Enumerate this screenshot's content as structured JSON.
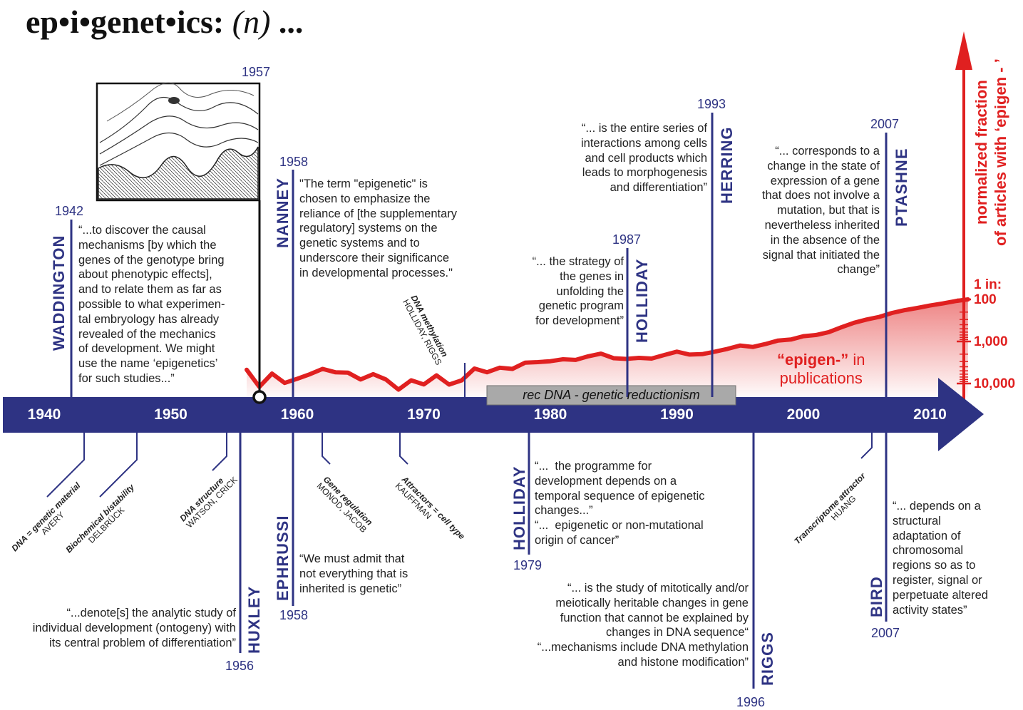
{
  "title": {
    "word": "ep•i•genet•ics:",
    "pos": "(n)",
    "ellipsis": "..."
  },
  "colors": {
    "navy": "#2e3383",
    "red": "#e02020",
    "gray_box": "#a9a9a9"
  },
  "timeline": {
    "decades": [
      "1940",
      "1950",
      "1960",
      "1970",
      "1980",
      "1990",
      "2000",
      "2010"
    ],
    "rec_dna_label": "rec DNA - genetic reductionism"
  },
  "above": {
    "waddington": {
      "year": "1942",
      "name": "WADDINGTON",
      "quote": "“...to discover the causal\nmechanisms [by which the\ngenes of the genotype bring\nabout phenotypic effects],\nand to relate them as far as\npossible to what experimen-\ntal embryology has already\nrevealed of the mechanics\nof development. We might\nuse the name ‘epigenetics’\nfor such studies...”"
    },
    "landscape": {
      "year": "1957",
      "icon": "epigenetic-landscape-icon"
    },
    "nanney": {
      "year": "1958",
      "name": "NANNEY",
      "quote": "\"The term \"epigenetic\" is\nchosen to emphasize the\nreliance of [the supplementary\nregulatory] systems on the\ngenetic systems and to\nunderscore their significance\nin developmental processes.\""
    },
    "dna_methylation": {
      "title": "DNA methylation",
      "authors": "HOLLIDAY, RIGGS"
    },
    "holliday87": {
      "year": "1987",
      "name": "HOLLIDAY",
      "quote": "“... the strategy of\nthe genes in\nunfolding the\ngenetic program\nfor development”"
    },
    "herring": {
      "year": "1993",
      "name": "HERRING",
      "quote": "“... is the entire series of\ninteractions among cells\nand cell products which\nleads to morphogenesis\nand differentiation”"
    },
    "ptashne": {
      "year": "2007",
      "name": "PTASHNE",
      "quote": "“... corresponds to a\nchange in the state of\nexpression of a gene\nthat does not involve a\nmutation, but that is\nnevertheless inherited\nin the absence of the\nsignal that initiated the\nchange”"
    }
  },
  "below": {
    "events": [
      {
        "title": "DNA = genetic material",
        "authors": "AVERY"
      },
      {
        "title": "Biochemical bistability",
        "authors": "DELBRÜCK"
      },
      {
        "title": "DNA structure",
        "authors": "WATSON, CRICK"
      },
      {
        "title": "Gene regulation",
        "authors": "MONOD, JACOB"
      },
      {
        "title": "Attractors = cell type",
        "authors": "KAUFFMAN"
      },
      {
        "title": "Transcriptome attractor",
        "authors": "HUANG"
      }
    ],
    "huxley": {
      "year": "1956",
      "name": "HUXLEY",
      "quote": "“...denote[s] the analytic study of\nindividual development (ontogeny) with\nits central problem of differentiation”"
    },
    "ephrussi": {
      "year": "1958",
      "name": "EPHRUSSI",
      "quote": "“We must admit that\nnot everything that is\ninherited is genetic”"
    },
    "holliday79": {
      "year": "1979",
      "name": "HOLLIDAY",
      "quote": "“...  the programme for\ndevelopment depends on a\ntemporal sequence of epigenetic\nchanges...”\n“...  epigenetic or non-mutational\norigin of cancer”"
    },
    "riggs": {
      "year": "1996",
      "name": "RIGGS",
      "quote": "“... is the study of mitotically and/or\nmeiotically heritable changes in gene\nfunction that cannot be explained by\nchanges in DNA sequence“\n“...mechanisms include DNA methylation\nand histone modification”"
    },
    "bird": {
      "year": "2007",
      "name": "BIRD",
      "quote": "“... depends on a\nstructural\nadaptation of\nchromosomal\nregions so as to\nregister, signal or\nperpetuate altered\nactivity states”"
    }
  },
  "publications": {
    "label_bold": "“epigen-”",
    "label_rest1": " in",
    "label_rest2": "publications",
    "axis_title_line1": "normalized  fraction",
    "axis_title_line2": "of articles with ‘epigen - ’",
    "ticks": [
      "1 in:",
      "100",
      "1,000",
      "10,000"
    ]
  },
  "chart_data": {
    "type": "line",
    "title": "",
    "xlabel": "",
    "ylabel": "normalized fraction of articles with ‘epigen - ’",
    "y_scale": "log",
    "y_ticks": [
      "1 in: 100",
      "1,000",
      "10,000"
    ],
    "series": [
      {
        "name": "“epigen-” in publications",
        "x": [
          1956,
          1957,
          1958,
          1959,
          1960,
          1961,
          1962,
          1963,
          1964,
          1965,
          1966,
          1967,
          1968,
          1969,
          1970,
          1971,
          1972,
          1973,
          1974,
          1975,
          1976,
          1977,
          1978,
          1979,
          1980,
          1981,
          1982,
          1983,
          1984,
          1985,
          1986,
          1987,
          1988,
          1989,
          1990,
          1991,
          1992,
          1993,
          1994,
          1995,
          1996,
          1997,
          1998,
          1999,
          2000,
          2001,
          2002,
          2003,
          2004,
          2005,
          2006,
          2007,
          2008,
          2009,
          2010,
          2011,
          2012,
          2013
        ],
        "y_one_in": [
          4700,
          12000,
          5800,
          9700,
          7700,
          6000,
          4500,
          5400,
          5500,
          8000,
          6000,
          8000,
          14000,
          8400,
          10500,
          6400,
          10600,
          8400,
          4400,
          5400,
          4200,
          4500,
          3200,
          3100,
          2950,
          2650,
          2750,
          2250,
          1950,
          2500,
          2600,
          2450,
          2550,
          2100,
          1750,
          2050,
          2000,
          1750,
          1500,
          1250,
          1350,
          1150,
          950,
          900,
          750,
          700,
          600,
          460,
          360,
          300,
          260,
          210,
          180,
          160,
          140,
          125,
          110,
          100
        ]
      }
    ]
  }
}
